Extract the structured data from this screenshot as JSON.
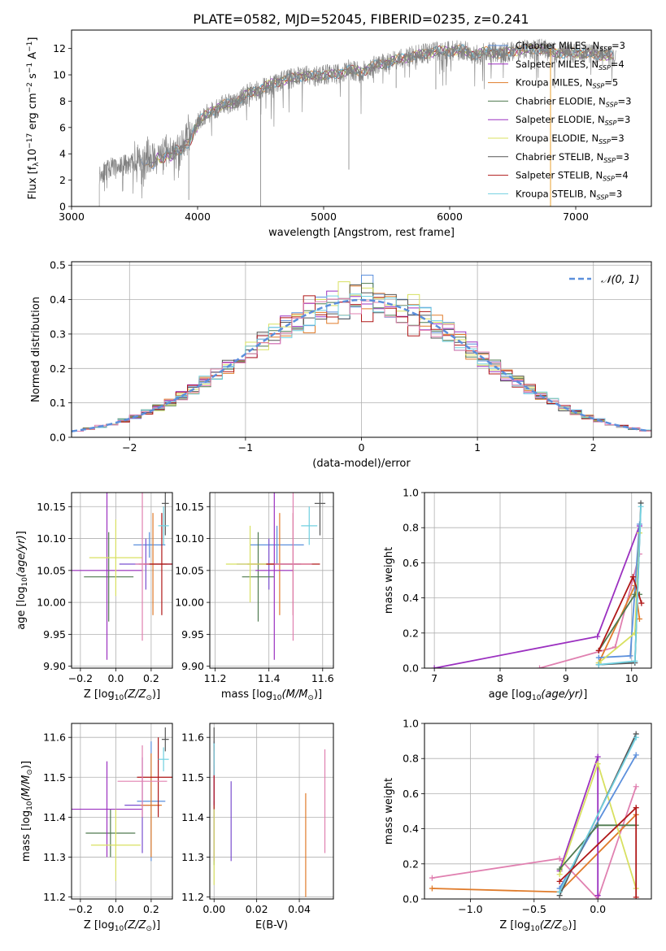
{
  "figure_title": "PLATE=0582, MJD=52045, FIBERID=0235, z=0.241",
  "model_colors": [
    "#5b8fdc",
    "#7a4fcf",
    "#e07b2a",
    "#4f7a4f",
    "#9b30c0",
    "#d8e060",
    "#555555",
    "#b01818",
    "#70d0e0",
    "#e080b0"
  ],
  "chart_data": [
    {
      "id": "spectrum",
      "type": "line",
      "title": "PLATE=0582, MJD=52045, FIBERID=0235, z=0.241",
      "xlabel": "wavelength [Angstrom, rest frame]",
      "ylabel": "Flux [f",
      "xlim": [
        3000,
        7600
      ],
      "ylim": [
        0,
        13.4
      ],
      "xticks": [
        3000,
        4000,
        5000,
        6000,
        7000
      ],
      "yticks": [
        0,
        2,
        4,
        6,
        8,
        10,
        12
      ],
      "grid": false,
      "legend_position": "top-right",
      "legend": [
        {
          "label": "Chabrier MILES, N",
          "sub": "SSP",
          "suffix": "=3",
          "color": "#5b8fdc"
        },
        {
          "label": "Salpeter MILES, N",
          "sub": "SSP",
          "suffix": "=4",
          "color": "#9b30c0"
        },
        {
          "label": "Kroupa MILES, N",
          "sub": "SSP",
          "suffix": "=5",
          "color": "#e07b2a"
        },
        {
          "label": "Chabrier ELODIE, N",
          "sub": "SSP",
          "suffix": "=3",
          "color": "#4f7a4f"
        },
        {
          "label": "Salpeter ELODIE, N",
          "sub": "SSP",
          "suffix": "=3",
          "color": "#9b30c0"
        },
        {
          "label": "Kroupa ELODIE, N",
          "sub": "SSP",
          "suffix": "=3",
          "color": "#d8e060"
        },
        {
          "label": "Chabrier STELIB, N",
          "sub": "SSP",
          "suffix": "=3",
          "color": "#555555"
        },
        {
          "label": "Salpeter STELIB, N",
          "sub": "SSP",
          "suffix": "=4",
          "color": "#b01818"
        },
        {
          "label": "Kroupa STELIB, N",
          "sub": "SSP",
          "suffix": "=3",
          "color": "#70d0e0"
        }
      ],
      "continuum": [
        [
          3200,
          2.3
        ],
        [
          3300,
          2.9
        ],
        [
          3400,
          3.1
        ],
        [
          3500,
          3.3
        ],
        [
          3600,
          3.5
        ],
        [
          3700,
          3.8
        ],
        [
          3800,
          4.3
        ],
        [
          3900,
          4.7
        ],
        [
          4000,
          6.4
        ],
        [
          4100,
          7.2
        ],
        [
          4200,
          7.7
        ],
        [
          4300,
          7.9
        ],
        [
          4400,
          8.6
        ],
        [
          4500,
          8.9
        ],
        [
          4600,
          9.4
        ],
        [
          4700,
          9.6
        ],
        [
          4800,
          9.9
        ],
        [
          4900,
          9.9
        ],
        [
          5000,
          10.0
        ],
        [
          5100,
          10.0
        ],
        [
          5200,
          10.4
        ],
        [
          5300,
          10.2
        ],
        [
          5400,
          10.7
        ],
        [
          5500,
          10.9
        ],
        [
          5600,
          11.2
        ],
        [
          5700,
          11.4
        ],
        [
          5800,
          11.6
        ],
        [
          5900,
          11.8
        ],
        [
          6000,
          11.8
        ],
        [
          6100,
          11.9
        ],
        [
          6200,
          11.5
        ],
        [
          6300,
          11.8
        ],
        [
          6400,
          11.6
        ],
        [
          6500,
          11.8
        ],
        [
          6600,
          11.9
        ],
        [
          6700,
          12.0
        ],
        [
          6800,
          11.8
        ],
        [
          6900,
          11.6
        ],
        [
          7000,
          11.7
        ],
        [
          7100,
          11.6
        ],
        [
          7200,
          11.5
        ],
        [
          7300,
          11.4
        ]
      ],
      "data_range": [
        3220,
        7320
      ],
      "model_range": [
        3550,
        7300
      ]
    },
    {
      "id": "residuals",
      "type": "line",
      "xlabel": "(data-model)/error",
      "ylabel": "Normed distribution",
      "xlim": [
        -2.5,
        2.5
      ],
      "ylim": [
        0,
        0.51
      ],
      "xticks": [
        -2,
        -1,
        0,
        1,
        2
      ],
      "yticks": [
        0.0,
        0.1,
        0.2,
        0.3,
        0.4,
        0.5
      ],
      "grid": true,
      "legend_position": "top-right",
      "legend": [
        {
          "label": "𝒩(0, 1)",
          "color": "#5b8fdc",
          "style": "dashed"
        }
      ],
      "bin_width": 0.1,
      "gaussian": {
        "mu": 0,
        "sigma": 1
      }
    },
    {
      "id": "age-vs-Z",
      "type": "scatter",
      "xlabel": "Z [log",
      "xlabel_sub": "10",
      "xlabel_suffix": "(Z/Z",
      "ylabel": "age  [log",
      "xlim": [
        -0.25,
        0.32
      ],
      "ylim": [
        9.897,
        10.172
      ],
      "xticks": [
        -0.2,
        0.0,
        0.2
      ],
      "yticks": [
        9.9,
        9.95,
        10.0,
        10.05,
        10.1,
        10.15
      ],
      "grid": true,
      "points": [
        {
          "x": 0.19,
          "y": 10.09,
          "xerr": 0.09,
          "yerr": 0.02,
          "color": "#5b8fdc"
        },
        {
          "x": 0.17,
          "y": 10.06,
          "xerr": 0.15,
          "yerr": 0.04,
          "color": "#7a4fcf"
        },
        {
          "x": 0.21,
          "y": 10.06,
          "xerr": 0.08,
          "yerr": 0.08,
          "color": "#e07b2a"
        },
        {
          "x": -0.04,
          "y": 10.04,
          "xerr": 0.14,
          "yerr": 0.07,
          "color": "#4f7a4f"
        },
        {
          "x": -0.05,
          "y": 10.05,
          "xerr": 0.2,
          "yerr": 0.14,
          "color": "#9b30c0"
        },
        {
          "x": 0.0,
          "y": 10.07,
          "xerr": 0.15,
          "yerr": 0.06,
          "color": "#d8e060"
        },
        {
          "x": 0.28,
          "y": 10.155,
          "xerr": 0.02,
          "yerr": 0.05,
          "color": "#555555"
        },
        {
          "x": 0.26,
          "y": 10.06,
          "xerr": 0.1,
          "yerr": 0.08,
          "color": "#b01818"
        },
        {
          "x": 0.27,
          "y": 10.12,
          "xerr": 0.03,
          "yerr": 0.03,
          "color": "#70d0e0"
        },
        {
          "x": 0.15,
          "y": 10.06,
          "xerr": 0.04,
          "yerr": 0.12,
          "color": "#e080b0"
        }
      ]
    },
    {
      "id": "age-vs-mass",
      "type": "scatter",
      "xlabel": "mass [log",
      "xlabel_sub": "10",
      "xlabel_suffix": "(M/M",
      "xlim": [
        11.18,
        11.64
      ],
      "ylim": [
        9.897,
        10.172
      ],
      "xticks": [
        11.2,
        11.4,
        11.6
      ],
      "yticks": [
        9.9,
        9.95,
        10.0,
        10.05,
        10.1,
        10.15
      ],
      "grid": true,
      "points": [
        {
          "x": 11.43,
          "y": 10.09,
          "xerr": 0.1,
          "yerr": 0.03,
          "color": "#5b8fdc"
        },
        {
          "x": 11.4,
          "y": 10.06,
          "xerr": 0.12,
          "yerr": 0.04,
          "color": "#7a4fcf"
        },
        {
          "x": 11.44,
          "y": 10.06,
          "xerr": 0.12,
          "yerr": 0.08,
          "color": "#e07b2a"
        },
        {
          "x": 11.36,
          "y": 10.04,
          "xerr": 0.06,
          "yerr": 0.07,
          "color": "#4f7a4f"
        },
        {
          "x": 11.42,
          "y": 10.05,
          "xerr": 0.07,
          "yerr": 0.14,
          "color": "#9b30c0"
        },
        {
          "x": 11.33,
          "y": 10.06,
          "xerr": 0.09,
          "yerr": 0.06,
          "color": "#d8e060"
        },
        {
          "x": 11.59,
          "y": 10.155,
          "xerr": 0.02,
          "yerr": 0.05,
          "color": "#555555"
        },
        {
          "x": 11.49,
          "y": 10.06,
          "xerr": 0.1,
          "yerr": 0.08,
          "color": "#b01818"
        },
        {
          "x": 11.55,
          "y": 10.12,
          "xerr": 0.03,
          "yerr": 0.03,
          "color": "#70d0e0"
        },
        {
          "x": 11.49,
          "y": 10.06,
          "xerr": 0.07,
          "yerr": 0.12,
          "color": "#e080b0"
        }
      ]
    },
    {
      "id": "weight-vs-age",
      "type": "line",
      "xlabel": "age  [log",
      "ylabel": "mass weight",
      "xlim": [
        6.85,
        10.3
      ],
      "ylim": [
        0,
        1.0
      ],
      "xticks": [
        7,
        8,
        9,
        10
      ],
      "yticks": [
        0.0,
        0.2,
        0.4,
        0.6,
        0.8,
        1.0
      ],
      "grid": true,
      "series": [
        {
          "color": "#9b30c0",
          "points": [
            [
              7.0,
              0.0
            ],
            [
              9.48,
              0.18
            ],
            [
              10.12,
              0.81
            ]
          ]
        },
        {
          "color": "#e080b0",
          "points": [
            [
              8.6,
              0.0
            ],
            [
              9.75,
              0.12
            ],
            [
              10.12,
              0.65
            ]
          ]
        },
        {
          "color": "#e07b2a",
          "points": [
            [
              9.5,
              0.03
            ],
            [
              10.05,
              0.47
            ],
            [
              10.12,
              0.28
            ]
          ]
        },
        {
          "color": "#5b8fdc",
          "points": [
            [
              9.5,
              0.06
            ],
            [
              9.98,
              0.07
            ],
            [
              10.12,
              0.82
            ]
          ]
        },
        {
          "color": "#4f7a4f",
          "points": [
            [
              9.5,
              0.1
            ],
            [
              10.05,
              0.42
            ],
            [
              10.12,
              0.42
            ]
          ]
        },
        {
          "color": "#d8e060",
          "points": [
            [
              9.5,
              0.03
            ],
            [
              10.05,
              0.2
            ],
            [
              10.12,
              0.77
            ]
          ]
        },
        {
          "color": "#555555",
          "points": [
            [
              9.5,
              0.02
            ],
            [
              10.05,
              0.03
            ],
            [
              10.14,
              0.94
            ]
          ]
        },
        {
          "color": "#b01818",
          "points": [
            [
              9.5,
              0.1
            ],
            [
              10.02,
              0.52
            ],
            [
              10.15,
              0.37
            ]
          ]
        },
        {
          "color": "#70d0e0",
          "points": [
            [
              9.5,
              0.02
            ],
            [
              10.05,
              0.04
            ],
            [
              10.14,
              0.92
            ]
          ]
        }
      ]
    },
    {
      "id": "mass-vs-Z",
      "type": "scatter",
      "xlabel": "Z [log",
      "xlabel_sub": "10",
      "xlabel_suffix": "(Z/Z",
      "ylabel": "mass [log",
      "xlim": [
        -0.25,
        0.32
      ],
      "ylim": [
        11.195,
        11.635
      ],
      "xticks": [
        -0.2,
        0.0,
        0.2
      ],
      "yticks": [
        11.2,
        11.3,
        11.4,
        11.5,
        11.6
      ],
      "grid": true,
      "points": [
        {
          "x": 0.2,
          "y": 11.44,
          "xerr": 0.08,
          "yerr": 0.15,
          "color": "#5b8fdc"
        },
        {
          "x": 0.15,
          "y": 11.43,
          "xerr": 0.1,
          "yerr": 0.12,
          "color": "#7a4fcf"
        },
        {
          "x": 0.2,
          "y": 11.43,
          "xerr": 0.06,
          "yerr": 0.13,
          "color": "#e07b2a"
        },
        {
          "x": -0.03,
          "y": 11.36,
          "xerr": 0.14,
          "yerr": 0.06,
          "color": "#4f7a4f"
        },
        {
          "x": -0.05,
          "y": 11.42,
          "xerr": 0.2,
          "yerr": 0.12,
          "color": "#9b30c0"
        },
        {
          "x": 0.0,
          "y": 11.33,
          "xerr": 0.14,
          "yerr": 0.09,
          "color": "#d8e060"
        },
        {
          "x": 0.28,
          "y": 11.595,
          "xerr": 0.02,
          "yerr": 0.03,
          "color": "#555555"
        },
        {
          "x": 0.24,
          "y": 11.5,
          "xerr": 0.12,
          "yerr": 0.1,
          "color": "#b01818"
        },
        {
          "x": 0.27,
          "y": 11.545,
          "xerr": 0.03,
          "yerr": 0.03,
          "color": "#70d0e0"
        },
        {
          "x": 0.15,
          "y": 11.49,
          "xerr": 0.14,
          "yerr": 0.09,
          "color": "#e080b0"
        }
      ]
    },
    {
      "id": "mass-vs-ebv",
      "type": "scatter",
      "xlabel": "E(B-V)",
      "xlim": [
        -0.002,
        0.056
      ],
      "ylim": [
        11.195,
        11.635
      ],
      "xticks": [
        0.0,
        0.02,
        0.04
      ],
      "yticks": [
        11.2,
        11.3,
        11.4,
        11.5,
        11.6
      ],
      "grid": true,
      "points": [
        {
          "x": 0.0,
          "y": 11.44,
          "yerr": 0.15,
          "color": "#5b8fdc"
        },
        {
          "x": 0.008,
          "y": 11.39,
          "yerr": 0.1,
          "color": "#7a4fcf"
        },
        {
          "x": 0.043,
          "y": 11.33,
          "yerr": 0.13,
          "color": "#e07b2a"
        },
        {
          "x": 0.0,
          "y": 11.36,
          "yerr": 0.08,
          "color": "#4f7a4f"
        },
        {
          "x": 0.0,
          "y": 11.41,
          "yerr": 0.12,
          "color": "#9b30c0"
        },
        {
          "x": 0.0,
          "y": 11.33,
          "yerr": 0.1,
          "color": "#d8e060"
        },
        {
          "x": 0.0,
          "y": 11.595,
          "yerr": 0.03,
          "color": "#555555"
        },
        {
          "x": 0.0,
          "y": 11.5,
          "yerr": 0.08,
          "color": "#b01818"
        },
        {
          "x": 0.0,
          "y": 11.545,
          "yerr": 0.04,
          "color": "#70d0e0"
        },
        {
          "x": 0.052,
          "y": 11.44,
          "yerr": 0.13,
          "color": "#e080b0"
        }
      ]
    },
    {
      "id": "weight-vs-Z",
      "type": "line",
      "xlabel": "Z [log",
      "xlabel_sub": "10",
      "xlabel_suffix": "(Z/Z",
      "ylabel": "mass weight",
      "xlim": [
        -1.36,
        0.42
      ],
      "ylim": [
        0,
        1.0
      ],
      "xticks": [
        -1.0,
        -0.5,
        0.0
      ],
      "yticks": [
        0.0,
        0.2,
        0.4,
        0.6,
        0.8,
        1.0
      ],
      "grid": true,
      "series": [
        {
          "color": "#e080b0",
          "points": [
            [
              -1.3,
              0.12
            ],
            [
              -0.3,
              0.23
            ],
            [
              0.0,
              0.0
            ],
            [
              0.3,
              0.64
            ]
          ]
        },
        {
          "color": "#e07b2a",
          "points": [
            [
              -1.3,
              0.06
            ],
            [
              -0.3,
              0.04
            ],
            [
              0.3,
              0.48
            ]
          ]
        },
        {
          "color": "#9b30c0",
          "points": [
            [
              -0.3,
              0.16
            ],
            [
              0.0,
              0.81
            ],
            [
              0.0,
              0.02
            ]
          ]
        },
        {
          "color": "#d8e060",
          "points": [
            [
              -0.3,
              0.14
            ],
            [
              0.0,
              0.77
            ],
            [
              0.3,
              0.06
            ]
          ]
        },
        {
          "color": "#5b8fdc",
          "points": [
            [
              -0.3,
              0.06
            ],
            [
              0.3,
              0.82
            ]
          ]
        },
        {
          "color": "#4f7a4f",
          "points": [
            [
              -0.3,
              0.17
            ],
            [
              0.0,
              0.42
            ],
            [
              0.3,
              0.42
            ]
          ]
        },
        {
          "color": "#555555",
          "points": [
            [
              -0.3,
              0.02
            ],
            [
              0.3,
              0.94
            ]
          ]
        },
        {
          "color": "#70d0e0",
          "points": [
            [
              -0.3,
              0.04
            ],
            [
              0.3,
              0.92
            ]
          ]
        },
        {
          "color": "#b01818",
          "points": [
            [
              -0.3,
              0.1
            ],
            [
              0.3,
              0.52
            ],
            [
              0.3,
              0.01
            ]
          ]
        }
      ]
    }
  ]
}
